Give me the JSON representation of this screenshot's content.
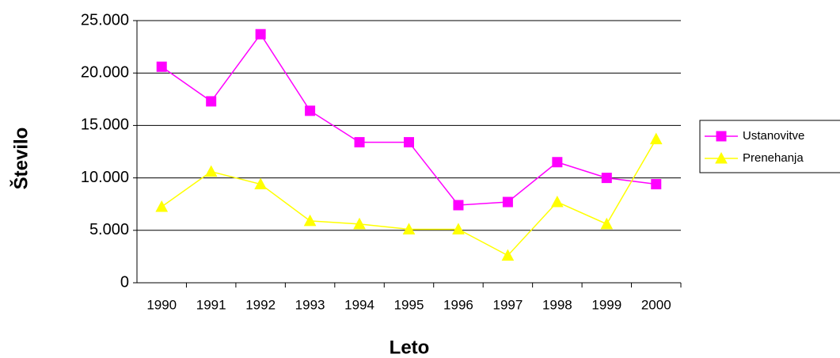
{
  "chart_data": {
    "type": "line",
    "x_label": "Leto",
    "y_label": "Število",
    "categories": [
      "1990",
      "1991",
      "1992",
      "1993",
      "1994",
      "1995",
      "1996",
      "1997",
      "1998",
      "1999",
      "2000"
    ],
    "series": [
      {
        "name": "Ustanovitve",
        "color": "#ff00ff",
        "marker": "square",
        "values": [
          20600,
          17300,
          23700,
          16400,
          13400,
          13400,
          7400,
          7700,
          11500,
          10000,
          9400
        ]
      },
      {
        "name": "Prenehanja",
        "color": "#ffff00",
        "marker": "triangle",
        "values": [
          7250,
          10600,
          9400,
          5900,
          5600,
          5100,
          5100,
          2600,
          7700,
          5600,
          13700
        ]
      }
    ],
    "ylim": [
      0,
      25000
    ],
    "yticks": [
      0,
      {
        "value": 5000,
        "label": "5.000"
      },
      {
        "value": 10000,
        "label": "10.000"
      },
      {
        "value": 15000,
        "label": "15.000"
      },
      {
        "value": 20000,
        "label": "20.000"
      },
      {
        "value": 25000,
        "label": "25.000"
      }
    ],
    "grid": true,
    "legend": "right"
  }
}
